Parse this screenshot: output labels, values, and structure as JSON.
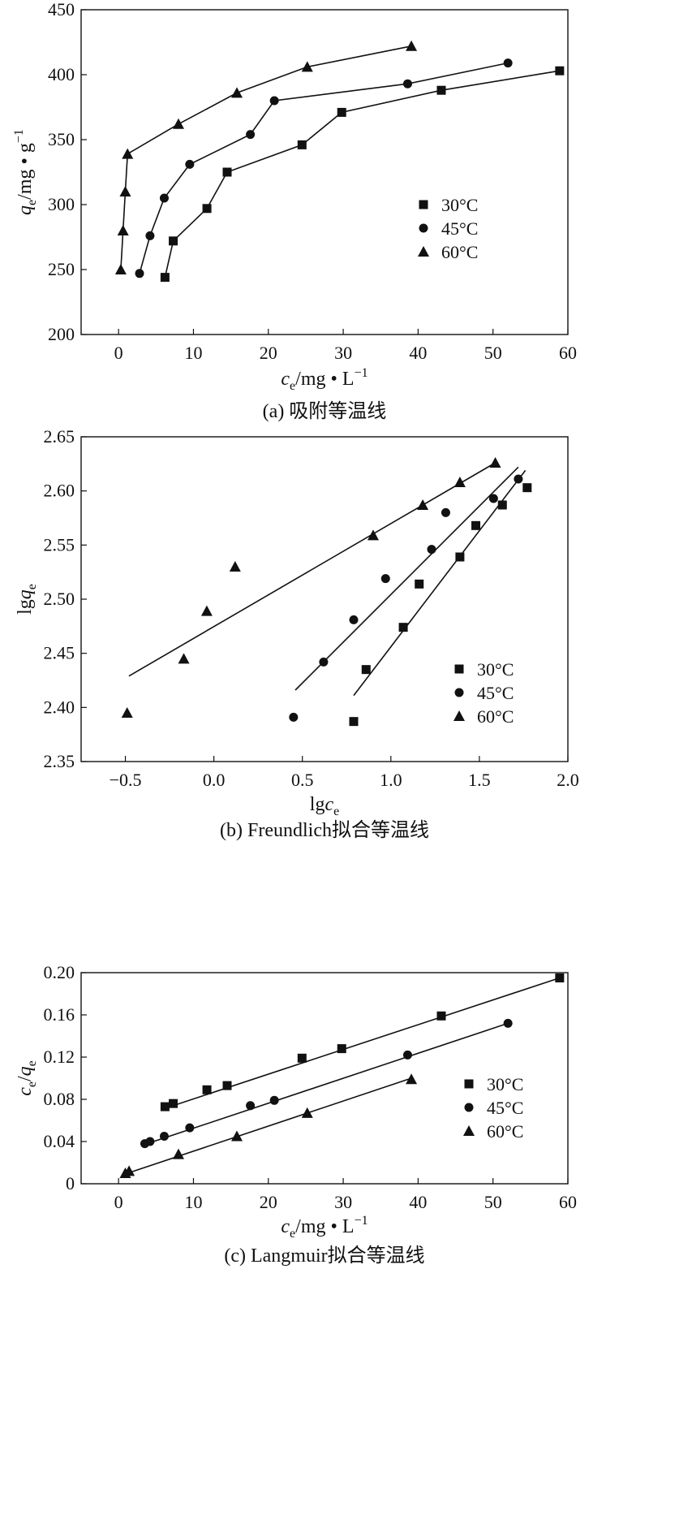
{
  "chart_data": [
    {
      "type": "scatter",
      "caption": "(a) 吸附等温线",
      "xlabel": {
        "var": "c",
        "sub": "e",
        "rest": "/mg • L",
        "sup": "−1"
      },
      "ylabel": {
        "var": "q",
        "sub": "e",
        "rest": "/mg • g",
        "sup": "−1"
      },
      "xlim": [
        -5,
        60
      ],
      "ylim": [
        200,
        450
      ],
      "xticks": [
        0,
        10,
        20,
        30,
        40,
        50,
        60
      ],
      "yticks": [
        200,
        250,
        300,
        350,
        400,
        450
      ],
      "xtick_labels": [
        "0",
        "10",
        "20",
        "30",
        "40",
        "50",
        "60"
      ],
      "ytick_labels": [
        "200",
        "250",
        "300",
        "350",
        "400",
        "450"
      ],
      "legend_position": "right",
      "connect": "points",
      "series": [
        {
          "name": "30°C",
          "marker": "square",
          "x": [
            6.2,
            7.3,
            11.8,
            14.5,
            24.5,
            29.8,
            43.1,
            58.9
          ],
          "y": [
            244,
            272,
            297,
            325,
            346,
            371,
            388,
            403
          ]
        },
        {
          "name": "45°C",
          "marker": "circle",
          "x": [
            2.8,
            4.2,
            6.1,
            9.5,
            17.6,
            20.8,
            38.6,
            52.0
          ],
          "y": [
            247,
            276,
            305,
            331,
            354,
            380,
            393,
            409
          ]
        },
        {
          "name": "60°C",
          "marker": "triangle",
          "x": [
            0.3,
            0.6,
            0.9,
            1.2,
            8.0,
            15.8,
            25.2,
            39.1
          ],
          "y": [
            250,
            280,
            310,
            339,
            362,
            386,
            406,
            422
          ]
        }
      ]
    },
    {
      "type": "scatter",
      "caption": "(b) Freundlich拟合等温线",
      "xlabel": {
        "var": "c",
        "sub": "e",
        "pre": "lg"
      },
      "ylabel": {
        "var": "q",
        "sub": "e",
        "pre": "lg"
      },
      "xlim": [
        -0.75,
        2.0
      ],
      "ylim": [
        2.35,
        2.65
      ],
      "xticks": [
        -0.5,
        0.0,
        0.5,
        1.0,
        1.5,
        2.0
      ],
      "yticks": [
        2.35,
        2.4,
        2.45,
        2.5,
        2.55,
        2.6,
        2.65
      ],
      "xtick_labels": [
        "−0.5",
        "0.0",
        "0.5",
        "1.0",
        "1.5",
        "2.0"
      ],
      "ytick_labels": [
        "2.35",
        "2.40",
        "2.45",
        "2.50",
        "2.55",
        "2.60",
        "2.65"
      ],
      "legend_position": "bottom-right",
      "connect": "fit",
      "series": [
        {
          "name": "30°C",
          "marker": "square",
          "x": [
            0.79,
            0.86,
            1.07,
            1.16,
            1.39,
            1.48,
            1.63,
            1.77
          ],
          "y": [
            2.387,
            2.435,
            2.474,
            2.514,
            2.539,
            2.568,
            2.587,
            2.603
          ],
          "fit": [
            [
              0.79,
              2.411
            ],
            [
              1.76,
              2.619
            ]
          ]
        },
        {
          "name": "45°C",
          "marker": "circle",
          "x": [
            0.45,
            0.62,
            0.79,
            0.97,
            1.23,
            1.31,
            1.58,
            1.72
          ],
          "y": [
            2.391,
            2.442,
            2.481,
            2.519,
            2.546,
            2.58,
            2.593,
            2.611
          ],
          "fit": [
            [
              0.46,
              2.416
            ],
            [
              1.72,
              2.622
            ]
          ]
        },
        {
          "name": "60°C",
          "marker": "triangle",
          "x": [
            -0.49,
            -0.17,
            -0.04,
            0.12,
            0.9,
            1.18,
            1.39,
            1.59
          ],
          "y": [
            2.395,
            2.445,
            2.489,
            2.53,
            2.559,
            2.587,
            2.608,
            2.626
          ],
          "fit": [
            [
              -0.48,
              2.429
            ],
            [
              1.59,
              2.626
            ]
          ]
        }
      ]
    },
    {
      "type": "scatter",
      "caption": "(c) Langmuir拟合等温线",
      "xlabel": {
        "var": "c",
        "sub": "e",
        "rest": "/mg • L",
        "sup": "−1"
      },
      "ylabel": {
        "var": "c",
        "sub": "e",
        "rest": "/",
        "var2": "q",
        "sub2": "e"
      },
      "xlim": [
        -5,
        60
      ],
      "ylim": [
        0,
        0.2
      ],
      "xticks": [
        0,
        10,
        20,
        30,
        40,
        50,
        60
      ],
      "yticks": [
        0,
        0.04,
        0.08,
        0.12,
        0.16,
        0.2
      ],
      "xtick_labels": [
        "0",
        "10",
        "20",
        "30",
        "40",
        "50",
        "60"
      ],
      "ytick_labels": [
        "0",
        "0.04",
        "0.08",
        "0.12",
        "0.16",
        "0.20"
      ],
      "legend_position": "bottom-right",
      "connect": "fit",
      "series": [
        {
          "name": "30°C",
          "marker": "square",
          "x": [
            6.2,
            7.3,
            11.8,
            14.5,
            24.5,
            29.8,
            43.1,
            58.9
          ],
          "y": [
            0.073,
            0.076,
            0.089,
            0.093,
            0.119,
            0.128,
            0.159,
            0.195
          ],
          "fit": [
            [
              6.0,
              0.071
            ],
            [
              58.9,
              0.195
            ]
          ]
        },
        {
          "name": "45°C",
          "marker": "circle",
          "x": [
            3.5,
            4.2,
            6.1,
            9.5,
            17.6,
            20.8,
            38.6,
            52.0
          ],
          "y": [
            0.038,
            0.04,
            0.045,
            0.053,
            0.074,
            0.079,
            0.122,
            0.152
          ],
          "fit": [
            [
              3.4,
              0.037
            ],
            [
              52.0,
              0.152
            ]
          ]
        },
        {
          "name": "60°C",
          "marker": "triangle",
          "x": [
            0.9,
            1.4,
            8.0,
            15.8,
            25.2,
            39.1
          ],
          "y": [
            0.01,
            0.012,
            0.028,
            0.045,
            0.067,
            0.099
          ],
          "fit": [
            [
              0.8,
              0.009
            ],
            [
              39.1,
              0.1
            ]
          ]
        }
      ]
    }
  ]
}
